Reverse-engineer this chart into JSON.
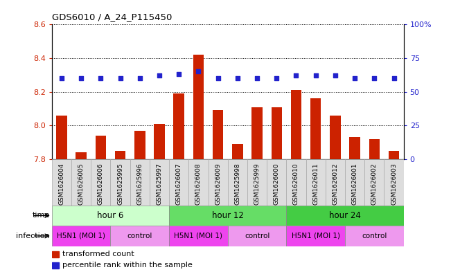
{
  "title": "GDS6010 / A_24_P115450",
  "samples": [
    "GSM1626004",
    "GSM1626005",
    "GSM1626006",
    "GSM1625995",
    "GSM1625996",
    "GSM1625997",
    "GSM1626007",
    "GSM1626008",
    "GSM1626009",
    "GSM1625998",
    "GSM1625999",
    "GSM1626000",
    "GSM1626010",
    "GSM1626011",
    "GSM1626012",
    "GSM1626001",
    "GSM1626002",
    "GSM1626003"
  ],
  "bar_values": [
    8.06,
    7.84,
    7.94,
    7.85,
    7.97,
    8.01,
    8.19,
    8.42,
    8.09,
    7.89,
    8.11,
    8.11,
    8.21,
    8.16,
    8.06,
    7.93,
    7.92,
    7.85
  ],
  "dot_values": [
    60,
    60,
    60,
    60,
    60,
    62,
    63,
    65,
    60,
    60,
    60,
    60,
    62,
    62,
    62,
    60,
    60,
    60
  ],
  "ylim_left": [
    7.8,
    8.6
  ],
  "ylim_right": [
    0,
    100
  ],
  "yticks_left": [
    7.8,
    8.0,
    8.2,
    8.4,
    8.6
  ],
  "yticks_right": [
    0,
    25,
    50,
    75,
    100
  ],
  "ytick_labels_right": [
    "0",
    "25",
    "50",
    "75",
    "100%"
  ],
  "bar_color": "#cc2200",
  "dot_color": "#2222cc",
  "bar_bottom": 7.8,
  "time_groups": [
    {
      "label": "hour 6",
      "start": 0,
      "end": 6,
      "color": "#ccffcc"
    },
    {
      "label": "hour 12",
      "start": 6,
      "end": 12,
      "color": "#66dd66"
    },
    {
      "label": "hour 24",
      "start": 12,
      "end": 18,
      "color": "#44cc44"
    }
  ],
  "infection_groups": [
    {
      "label": "H5N1 (MOI 1)",
      "start": 0,
      "end": 3,
      "color": "#ee44ee"
    },
    {
      "label": "control",
      "start": 3,
      "end": 6,
      "color": "#ee99ee"
    },
    {
      "label": "H5N1 (MOI 1)",
      "start": 6,
      "end": 9,
      "color": "#ee44ee"
    },
    {
      "label": "control",
      "start": 9,
      "end": 12,
      "color": "#ee99ee"
    },
    {
      "label": "H5N1 (MOI 1)",
      "start": 12,
      "end": 15,
      "color": "#ee44ee"
    },
    {
      "label": "control",
      "start": 15,
      "end": 18,
      "color": "#ee99ee"
    }
  ],
  "legend_bar_label": "transformed count",
  "legend_dot_label": "percentile rank within the sample",
  "tick_label_color_left": "#cc2200",
  "tick_label_color_right": "#2222cc",
  "sample_cell_color": "#dddddd",
  "n_samples": 18
}
